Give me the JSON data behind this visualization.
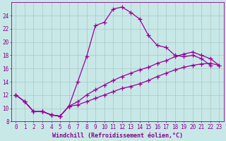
{
  "bg_color": "#c8e8e8",
  "grid_color": "#a8c8c8",
  "line_color": "#990099",
  "line_width": 0.9,
  "marker": "+",
  "marker_size": 4,
  "marker_edge_width": 0.9,
  "xlabel": "Windchill (Refroidissement éolien,°C)",
  "xlabel_fontsize": 6.0,
  "tick_fontsize": 5.5,
  "tick_color": "#880088",
  "ylim": [
    8,
    26
  ],
  "xlim": [
    -0.5,
    23.5
  ],
  "yticks": [
    8,
    10,
    12,
    14,
    16,
    18,
    20,
    22,
    24
  ],
  "xticks": [
    0,
    1,
    2,
    3,
    4,
    5,
    6,
    7,
    8,
    9,
    10,
    11,
    12,
    13,
    14,
    15,
    16,
    17,
    18,
    19,
    20,
    21,
    22,
    23
  ],
  "curve1_x": [
    0,
    1,
    2,
    3,
    4,
    5,
    6,
    7,
    8,
    9,
    10,
    11,
    12,
    13,
    14,
    15,
    16,
    17,
    18,
    19,
    20,
    21,
    22
  ],
  "curve1_y": [
    12.0,
    11.0,
    9.5,
    9.5,
    9.0,
    8.8,
    10.3,
    14.0,
    17.8,
    22.5,
    23.0,
    25.0,
    25.3,
    24.5,
    23.5,
    21.0,
    19.5,
    19.2,
    18.0,
    17.8,
    18.0,
    17.5,
    16.5
  ],
  "curve2_x": [
    0,
    1,
    2,
    3,
    4,
    5,
    6,
    7,
    8,
    9,
    10,
    11,
    12,
    13,
    14,
    15,
    16,
    17,
    18,
    19,
    20,
    21,
    22,
    23
  ],
  "curve2_y": [
    12.0,
    11.0,
    9.5,
    9.5,
    9.0,
    8.8,
    10.3,
    10.5,
    11.0,
    11.5,
    12.0,
    12.5,
    13.0,
    13.3,
    13.7,
    14.2,
    14.8,
    15.3,
    15.8,
    16.2,
    16.5,
    16.7,
    16.8,
    16.5
  ],
  "curve3_x": [
    0,
    1,
    2,
    3,
    4,
    5,
    6,
    7,
    8,
    9,
    10,
    11,
    12,
    13,
    14,
    15,
    16,
    17,
    18,
    19,
    20,
    21,
    22,
    23
  ],
  "curve3_y": [
    12.0,
    11.0,
    9.5,
    9.5,
    9.0,
    8.8,
    10.3,
    11.0,
    12.0,
    12.8,
    13.5,
    14.2,
    14.8,
    15.3,
    15.8,
    16.2,
    16.8,
    17.2,
    17.8,
    18.2,
    18.5,
    18.0,
    17.5,
    16.5
  ]
}
